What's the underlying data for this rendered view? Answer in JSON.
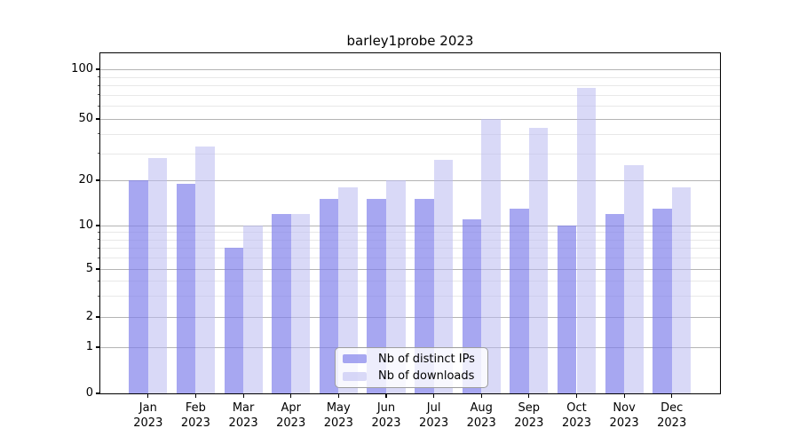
{
  "title": "barley1probe 2023",
  "chart_data": {
    "type": "bar",
    "title": "barley1probe 2023",
    "yscale": "log-like (0 baseline)",
    "yticks": [
      0,
      1,
      2,
      5,
      10,
      20,
      50,
      100
    ],
    "minor_gridlines": [
      3,
      4,
      6,
      7,
      8,
      9,
      30,
      40,
      60,
      70,
      80,
      90
    ],
    "grid": true,
    "legend_position": "inside bottom-center",
    "categories": [
      {
        "month": "Jan",
        "year": "2023"
      },
      {
        "month": "Feb",
        "year": "2023"
      },
      {
        "month": "Mar",
        "year": "2023"
      },
      {
        "month": "Apr",
        "year": "2023"
      },
      {
        "month": "May",
        "year": "2023"
      },
      {
        "month": "Jun",
        "year": "2023"
      },
      {
        "month": "Jul",
        "year": "2023"
      },
      {
        "month": "Aug",
        "year": "2023"
      },
      {
        "month": "Sep",
        "year": "2023"
      },
      {
        "month": "Oct",
        "year": "2023"
      },
      {
        "month": "Nov",
        "year": "2023"
      },
      {
        "month": "Dec",
        "year": "2023"
      }
    ],
    "series": [
      {
        "name": "Nb of distinct IPs",
        "color": "#a6a6f1",
        "fill": "rgba(125,125,235,0.68)",
        "values": [
          20,
          19,
          7,
          12,
          15,
          15,
          15,
          11,
          13,
          10,
          12,
          13
        ]
      },
      {
        "name": "Nb of downloads",
        "color": "#d8d8f6",
        "fill": "rgba(185,185,240,0.55)",
        "values": [
          28,
          33,
          10,
          12,
          18,
          20,
          27,
          50,
          44,
          77,
          25,
          18
        ]
      }
    ]
  }
}
